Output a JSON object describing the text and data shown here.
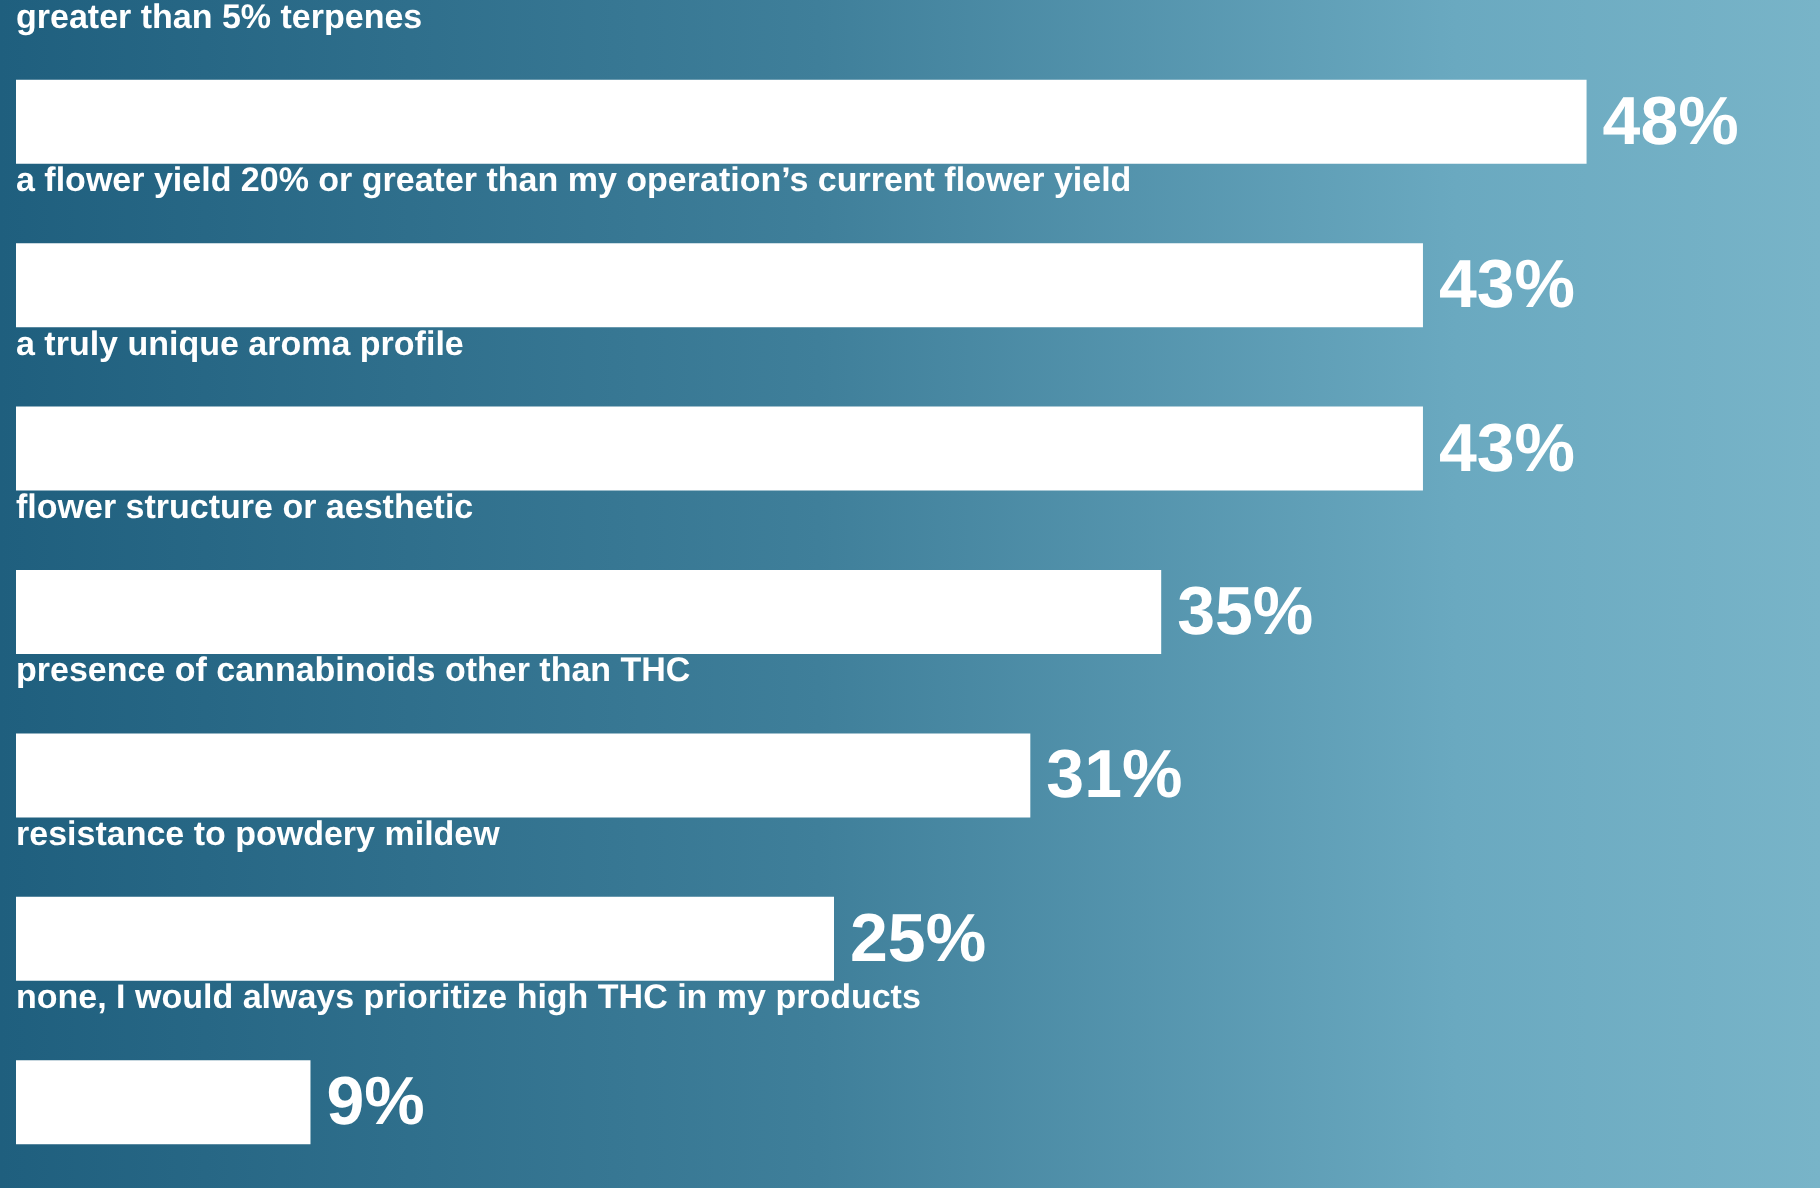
{
  "chart_data": {
    "type": "bar",
    "orientation": "horizontal",
    "categories": [
      "greater than 5% terpenes",
      "a flower yield 20% or greater than my operation’s current flower yield",
      "a truly unique aroma profile",
      "flower structure or aesthetic",
      "presence of cannabinoids other than THC",
      "resistance to powdery mildew",
      "none, I would always prioritize high THC in my products"
    ],
    "values": [
      48,
      43,
      43,
      35,
      31,
      25,
      9
    ],
    "value_labels": [
      "48%",
      "43%",
      "43%",
      "35%",
      "31%",
      "25%",
      "9%"
    ],
    "color": "#ffffff"
  }
}
